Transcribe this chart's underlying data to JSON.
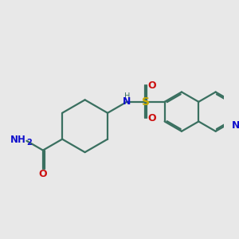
{
  "background_color": "#e8e8e8",
  "bond_color": "#3a7060",
  "nitrogen_color": "#1010cc",
  "oxygen_color": "#cc1010",
  "sulfur_color": "#ccaa00",
  "line_width": 1.6,
  "dbo": 0.07,
  "figsize": [
    3.0,
    3.0
  ],
  "dpi": 100,
  "xlim": [
    0.0,
    8.5
  ],
  "ylim": [
    1.5,
    8.0
  ]
}
